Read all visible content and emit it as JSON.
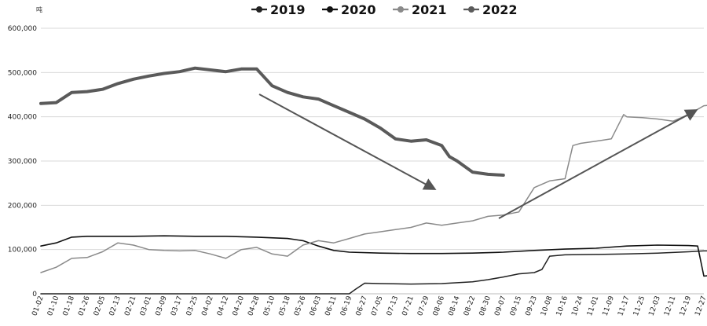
{
  "chart_data": {
    "type": "line",
    "unit_label": "吨",
    "ylim": [
      0,
      600000
    ],
    "y_ticks": [
      "0",
      "100,000",
      "200,000",
      "300,000",
      "400,000",
      "500,000",
      "600,000"
    ],
    "y_tick_values": [
      0,
      100000,
      200000,
      300000,
      400000,
      500000,
      600000
    ],
    "x_labels": [
      "01-02",
      "01-10",
      "01-18",
      "01-26",
      "02-05",
      "02-13",
      "02-21",
      "03-01",
      "03-09",
      "03-17",
      "03-25",
      "04-02",
      "04-12",
      "04-20",
      "04-28",
      "05-10",
      "05-18",
      "05-26",
      "06-03",
      "06-11",
      "06-19",
      "06-27",
      "07-05",
      "07-13",
      "07-21",
      "07-29",
      "08-06",
      "08-14",
      "08-22",
      "08-30",
      "09-07",
      "09-15",
      "09-23",
      "10-08",
      "10-16",
      "10-24",
      "11-01",
      "11-09",
      "11-17",
      "11-25",
      "12-03",
      "12-11",
      "12-19",
      "12-27"
    ],
    "grid": true,
    "legend_position": "top",
    "series": [
      {
        "name": "2019",
        "color": "#222222",
        "width": 1.5,
        "points": [
          [
            0,
            0
          ],
          [
            20,
            0
          ],
          [
            20.4,
            10000
          ],
          [
            21,
            24000
          ],
          [
            22,
            23000
          ],
          [
            24,
            22000
          ],
          [
            26,
            23000
          ],
          [
            28,
            27000
          ],
          [
            29,
            32000
          ],
          [
            30,
            38000
          ],
          [
            31,
            45000
          ],
          [
            32,
            48000
          ],
          [
            32.5,
            55000
          ],
          [
            33,
            85000
          ],
          [
            34,
            88000
          ],
          [
            36,
            89000
          ],
          [
            38,
            90000
          ],
          [
            40,
            92000
          ],
          [
            42,
            95000
          ],
          [
            43,
            97000
          ],
          [
            44,
            97000
          ]
        ]
      },
      {
        "name": "2020",
        "color": "#111111",
        "width": 1.6,
        "points": [
          [
            0,
            108000
          ],
          [
            1,
            115000
          ],
          [
            2,
            128000
          ],
          [
            3,
            130000
          ],
          [
            6,
            130000
          ],
          [
            8,
            131000
          ],
          [
            10,
            130000
          ],
          [
            12,
            130000
          ],
          [
            14,
            128000
          ],
          [
            16,
            125000
          ],
          [
            17,
            120000
          ],
          [
            18,
            108000
          ],
          [
            19,
            98000
          ],
          [
            20,
            94000
          ],
          [
            22,
            92000
          ],
          [
            24,
            91000
          ],
          [
            26,
            91000
          ],
          [
            28,
            92000
          ],
          [
            30,
            94000
          ],
          [
            32,
            98000
          ],
          [
            34,
            101000
          ],
          [
            36,
            103000
          ],
          [
            38,
            108000
          ],
          [
            40,
            110000
          ],
          [
            42,
            109000
          ],
          [
            42.6,
            108000
          ],
          [
            43,
            40000
          ],
          [
            43.5,
            42000
          ],
          [
            44,
            48000
          ]
        ]
      },
      {
        "name": "2021",
        "color": "#8a8a8a",
        "width": 1.5,
        "points": [
          [
            0,
            48000
          ],
          [
            1,
            60000
          ],
          [
            2,
            80000
          ],
          [
            3,
            82000
          ],
          [
            4,
            95000
          ],
          [
            5,
            115000
          ],
          [
            6,
            110000
          ],
          [
            7,
            100000
          ],
          [
            8,
            98000
          ],
          [
            9,
            97000
          ],
          [
            10,
            98000
          ],
          [
            11,
            90000
          ],
          [
            12,
            80000
          ],
          [
            13,
            100000
          ],
          [
            14,
            105000
          ],
          [
            15,
            90000
          ],
          [
            16,
            85000
          ],
          [
            17,
            110000
          ],
          [
            18,
            120000
          ],
          [
            19,
            115000
          ],
          [
            20,
            125000
          ],
          [
            21,
            135000
          ],
          [
            22,
            140000
          ],
          [
            23,
            145000
          ],
          [
            24,
            150000
          ],
          [
            25,
            160000
          ],
          [
            26,
            155000
          ],
          [
            27,
            160000
          ],
          [
            28,
            165000
          ],
          [
            29,
            175000
          ],
          [
            30,
            178000
          ],
          [
            31,
            185000
          ],
          [
            32,
            240000
          ],
          [
            33,
            255000
          ],
          [
            34,
            260000
          ],
          [
            34.5,
            335000
          ],
          [
            35,
            340000
          ],
          [
            36,
            345000
          ],
          [
            37,
            350000
          ],
          [
            37.8,
            405000
          ],
          [
            38,
            400000
          ],
          [
            39,
            398000
          ],
          [
            40,
            395000
          ],
          [
            41,
            390000
          ],
          [
            42,
            405000
          ],
          [
            43,
            425000
          ],
          [
            44,
            428000
          ]
        ]
      },
      {
        "name": "2022",
        "color": "#5a5a5a",
        "width": 4,
        "points": [
          [
            0,
            430000
          ],
          [
            1,
            432000
          ],
          [
            2,
            455000
          ],
          [
            3,
            457000
          ],
          [
            4,
            462000
          ],
          [
            5,
            475000
          ],
          [
            6,
            485000
          ],
          [
            7,
            492000
          ],
          [
            8,
            498000
          ],
          [
            9,
            502000
          ],
          [
            10,
            510000
          ],
          [
            11,
            506000
          ],
          [
            12,
            502000
          ],
          [
            13,
            508000
          ],
          [
            14,
            508000
          ],
          [
            15,
            470000
          ],
          [
            16,
            455000
          ],
          [
            17,
            445000
          ],
          [
            18,
            440000
          ],
          [
            19,
            425000
          ],
          [
            20,
            410000
          ],
          [
            21,
            395000
          ],
          [
            22,
            375000
          ],
          [
            23,
            350000
          ],
          [
            24,
            345000
          ],
          [
            25,
            348000
          ],
          [
            26,
            335000
          ],
          [
            26.5,
            310000
          ],
          [
            27,
            300000
          ],
          [
            28,
            275000
          ],
          [
            29,
            270000
          ],
          [
            30,
            268000
          ]
        ]
      }
    ]
  }
}
